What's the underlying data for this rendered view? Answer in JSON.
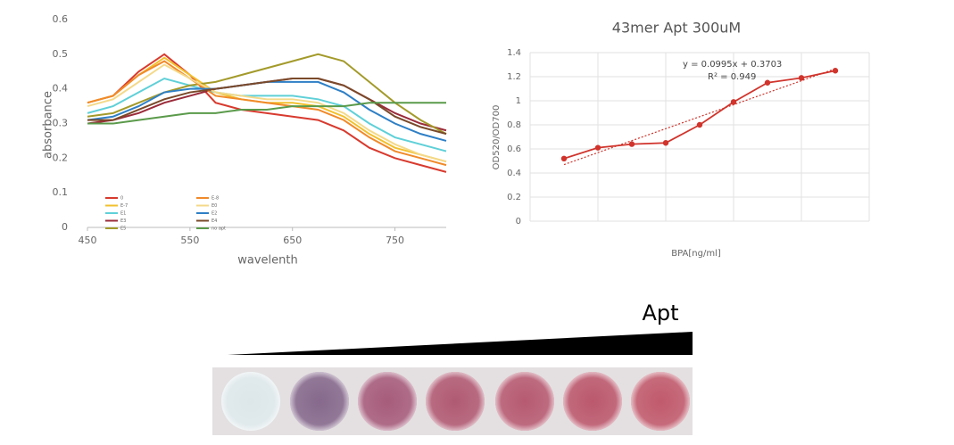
{
  "chart_data": [
    {
      "type": "line",
      "x_label": "wavelenth",
      "y_label": "absorbance",
      "x": [
        450,
        475,
        500,
        525,
        550,
        575,
        600,
        625,
        650,
        675,
        700,
        725,
        750,
        775,
        800
      ],
      "xlim": [
        450,
        800
      ],
      "xticks": [
        450,
        550,
        650,
        750
      ],
      "ylim": [
        0,
        0.6
      ],
      "yticks": [
        0,
        0.1,
        0.2,
        0.3,
        0.4,
        0.5,
        0.6
      ],
      "series": [
        {
          "name": "0",
          "color": "#d83a2e",
          "values": [
            0.36,
            0.38,
            0.45,
            0.5,
            0.44,
            0.36,
            0.34,
            0.33,
            0.32,
            0.31,
            0.28,
            0.23,
            0.2,
            0.18,
            0.16
          ]
        },
        {
          "name": "E-7",
          "color": "#f2c12e",
          "values": [
            0.36,
            0.38,
            0.44,
            0.49,
            0.44,
            0.39,
            0.37,
            0.36,
            0.36,
            0.35,
            0.32,
            0.27,
            0.23,
            0.21,
            0.19
          ]
        },
        {
          "name": "E1",
          "color": "#5fd0d8",
          "values": [
            0.33,
            0.35,
            0.39,
            0.43,
            0.41,
            0.39,
            0.38,
            0.38,
            0.38,
            0.37,
            0.35,
            0.3,
            0.26,
            0.24,
            0.22
          ]
        },
        {
          "name": "E3",
          "color": "#9b2b3a",
          "values": [
            0.3,
            0.31,
            0.33,
            0.36,
            0.38,
            0.4,
            0.41,
            0.42,
            0.43,
            0.43,
            0.41,
            0.37,
            0.33,
            0.3,
            0.28
          ]
        },
        {
          "name": "E5",
          "color": "#a39a2a",
          "values": [
            0.32,
            0.33,
            0.36,
            0.39,
            0.41,
            0.42,
            0.44,
            0.46,
            0.48,
            0.5,
            0.48,
            0.42,
            0.36,
            0.31,
            0.27
          ]
        },
        {
          "name": "E-8",
          "color": "#f08a2a",
          "values": [
            0.36,
            0.38,
            0.44,
            0.48,
            0.43,
            0.38,
            0.37,
            0.36,
            0.35,
            0.34,
            0.31,
            0.26,
            0.22,
            0.2,
            0.18
          ]
        },
        {
          "name": "E0",
          "color": "#f4d98a",
          "values": [
            0.35,
            0.37,
            0.42,
            0.47,
            0.43,
            0.39,
            0.38,
            0.37,
            0.37,
            0.36,
            0.33,
            0.28,
            0.24,
            0.21,
            0.19
          ]
        },
        {
          "name": "E2",
          "color": "#2e7fc6",
          "values": [
            0.31,
            0.32,
            0.35,
            0.39,
            0.4,
            0.4,
            0.41,
            0.42,
            0.42,
            0.42,
            0.39,
            0.34,
            0.3,
            0.27,
            0.25
          ]
        },
        {
          "name": "E4",
          "color": "#7a4a2a",
          "values": [
            0.31,
            0.31,
            0.34,
            0.37,
            0.39,
            0.4,
            0.41,
            0.42,
            0.43,
            0.43,
            0.41,
            0.37,
            0.32,
            0.29,
            0.27
          ]
        },
        {
          "name": "no apt",
          "color": "#5a9a4a",
          "values": [
            0.3,
            0.3,
            0.31,
            0.32,
            0.33,
            0.33,
            0.34,
            0.34,
            0.35,
            0.35,
            0.35,
            0.36,
            0.36,
            0.36,
            0.36
          ]
        }
      ]
    },
    {
      "type": "line",
      "title": "43mer Apt 300uM",
      "x_label": "BPA[ng/ml]",
      "y_label": "OD520/OD700",
      "categories": [
        null,
        null,
        null,
        null,
        null,
        null,
        null,
        null,
        null
      ],
      "values": [
        0.52,
        0.61,
        0.64,
        0.65,
        0.8,
        0.99,
        1.15,
        1.19,
        1.25
      ],
      "color": "#d0342c",
      "ylim": [
        0,
        1.4
      ],
      "yticks": [
        0,
        0.2,
        0.4,
        0.6,
        0.8,
        1,
        1.2,
        1.4
      ],
      "grid": true,
      "trendline": {
        "slope": 0.0995,
        "intercept": 0.3703,
        "label": "y = 0.0995x + 0.3703",
        "r2_label": "R² = 0.949"
      }
    }
  ],
  "wedge_label": "Apt"
}
